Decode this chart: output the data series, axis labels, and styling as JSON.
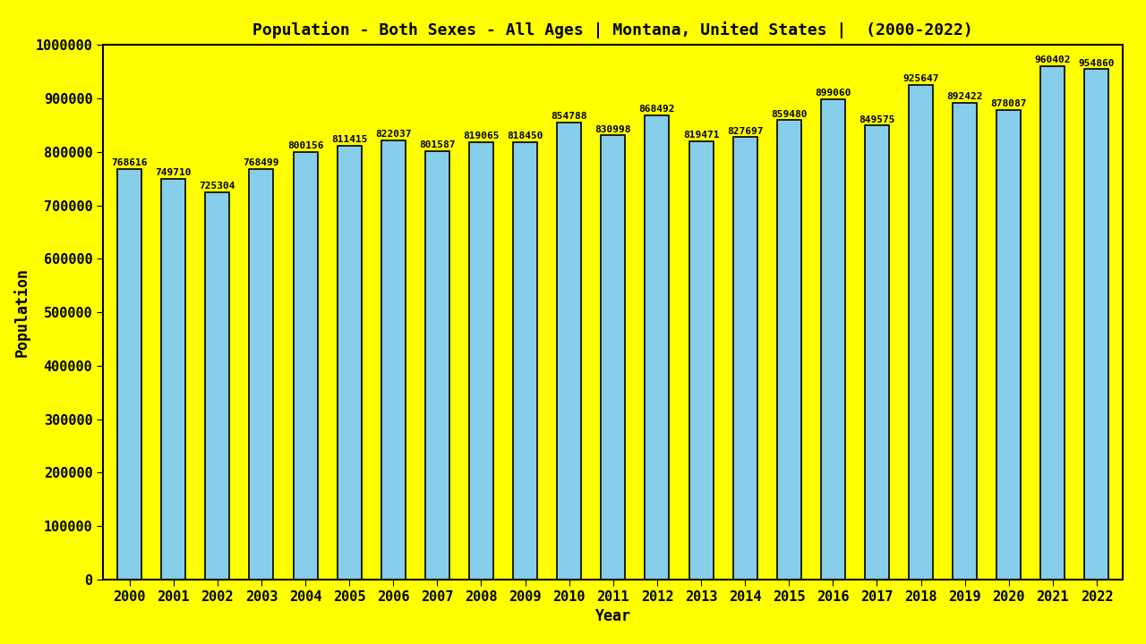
{
  "title": "Population - Both Sexes - All Ages | Montana, United States |  (2000-2022)",
  "xlabel": "Year",
  "ylabel": "Population",
  "background_color": "#FFFF00",
  "bar_color": "#87CEEB",
  "bar_edge_color": "#000000",
  "years": [
    2000,
    2001,
    2002,
    2003,
    2004,
    2005,
    2006,
    2007,
    2008,
    2009,
    2010,
    2011,
    2012,
    2013,
    2014,
    2015,
    2016,
    2017,
    2018,
    2019,
    2020,
    2021,
    2022
  ],
  "values": [
    768616,
    749710,
    725304,
    768499,
    800156,
    811415,
    822037,
    801587,
    819065,
    818450,
    854788,
    830998,
    868492,
    819471,
    827697,
    859480,
    899060,
    849575,
    925647,
    892422,
    878087,
    960402,
    954860
  ],
  "ylim": [
    0,
    1000000
  ],
  "yticks": [
    0,
    100000,
    200000,
    300000,
    400000,
    500000,
    600000,
    700000,
    800000,
    900000,
    1000000
  ],
  "title_fontsize": 13,
  "label_fontsize": 12,
  "tick_fontsize": 11,
  "value_label_fontsize": 8.0,
  "bar_width": 0.55
}
